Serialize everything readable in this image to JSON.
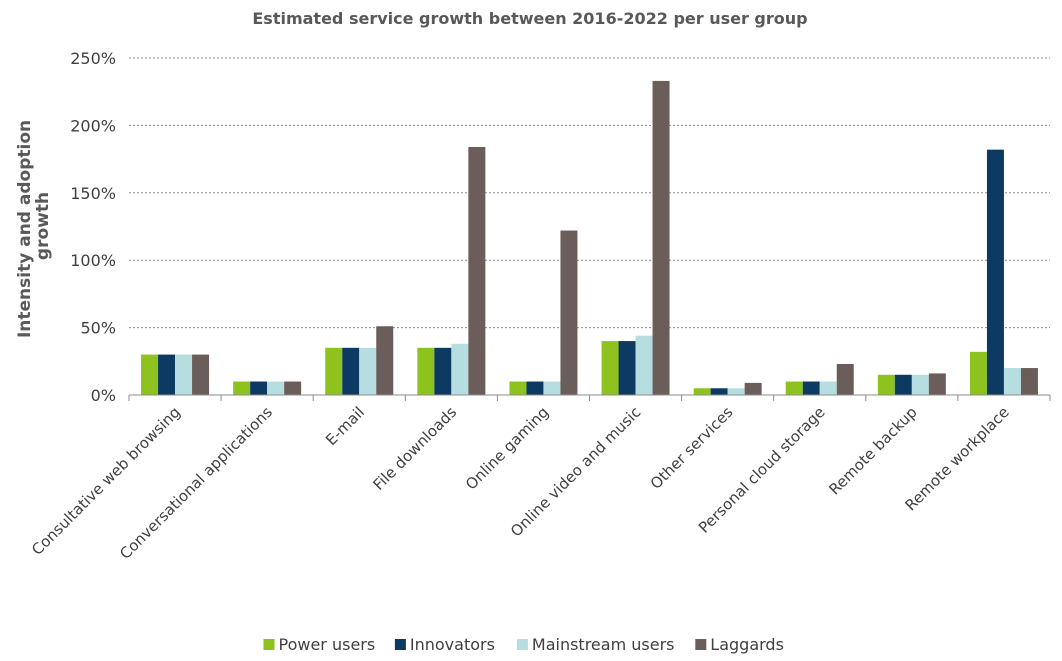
{
  "chart_data": {
    "type": "bar",
    "title": "Estimated service growth between 2016-2022 per user group",
    "ylabel": [
      "Intensity and adoption",
      "growth"
    ],
    "xlabel": "",
    "ylim": [
      0,
      250
    ],
    "yticks": [
      "0%",
      "50%",
      "100%",
      "150%",
      "200%",
      "250%"
    ],
    "ytick_values": [
      0,
      50,
      100,
      150,
      200,
      250
    ],
    "grid": true,
    "legend_position": "bottom",
    "categories": [
      "Consultative web browsing",
      "Conversational applications",
      "E-mail",
      "File downloads",
      "Online gaming",
      "Online video and music",
      "Other services",
      "Personal cloud storage",
      "Remote backup",
      "Remote workplace"
    ],
    "series": [
      {
        "name": "Power users",
        "color": "#8dc21f",
        "values": [
          30,
          10,
          35,
          35,
          10,
          40,
          5,
          10,
          15,
          32
        ]
      },
      {
        "name": "Innovators",
        "color": "#0d3a63",
        "values": [
          30,
          10,
          35,
          35,
          10,
          40,
          5,
          10,
          15,
          182
        ]
      },
      {
        "name": "Mainstream users",
        "color": "#b6dde0",
        "values": [
          30,
          10,
          35,
          38,
          10,
          44,
          5,
          10,
          15,
          20
        ]
      },
      {
        "name": "Laggards",
        "color": "#6b5e5a",
        "values": [
          30,
          10,
          51,
          184,
          122,
          233,
          9,
          23,
          16,
          20
        ]
      }
    ]
  }
}
